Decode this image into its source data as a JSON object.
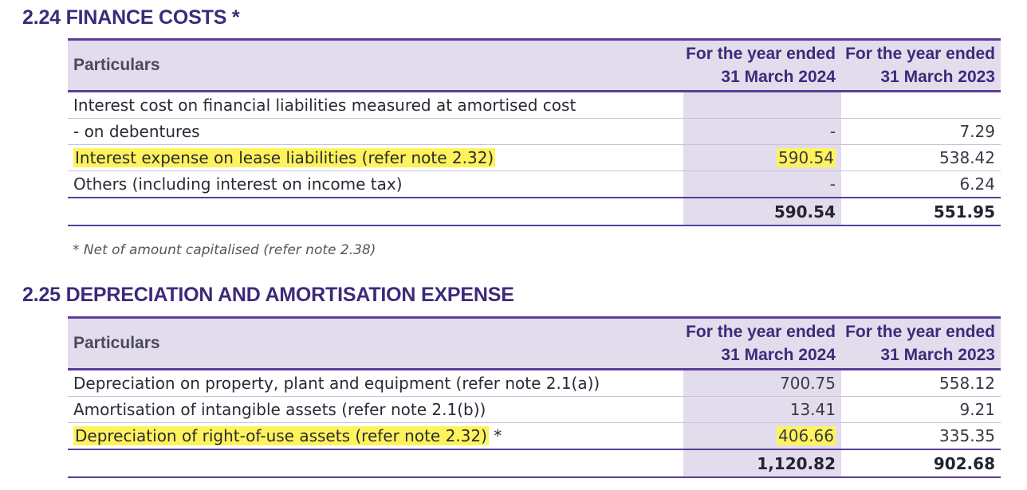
{
  "finance_costs": {
    "heading": "2.24 FINANCE COSTS *",
    "header": {
      "particulars": "Particulars",
      "col_2024_line1": "For the year ended",
      "col_2024_line2": "31 March 2024",
      "col_2023_line1": "For the year ended",
      "col_2023_line2": "31 March 2023"
    },
    "rows": [
      {
        "label": "Interest cost on financial liabilities measured at amortised cost",
        "v2024": "",
        "v2023": ""
      },
      {
        "label": "- on debentures",
        "v2024": "-",
        "v2023": "7.29"
      },
      {
        "label": "Interest expense on lease liabilities (refer note 2.32)",
        "v2024": "590.54",
        "v2023": "538.42"
      },
      {
        "label": "Others (including interest on income tax)",
        "v2024": "-",
        "v2023": "6.24"
      }
    ],
    "total": {
      "v2024": "590.54",
      "v2023": "551.95"
    },
    "footnote": "* Net of amount capitalised (refer note 2.38)"
  },
  "depreciation": {
    "heading": "2.25 DEPRECIATION AND AMORTISATION EXPENSE",
    "header": {
      "particulars": "Particulars",
      "col_2024_line1": "For the year ended",
      "col_2024_line2": "31 March 2024",
      "col_2023_line1": "For the year ended",
      "col_2023_line2": "31 March 2023"
    },
    "rows": [
      {
        "label": "Depreciation on property, plant and equipment (refer note 2.1(a))",
        "v2024": "700.75",
        "v2023": "558.12"
      },
      {
        "label": "Amortisation of intangible assets (refer note 2.1(b))",
        "v2024": "13.41",
        "v2023": "9.21"
      },
      {
        "label": "Depreciation of right-of-use assets (refer note 2.32)",
        "label_suffix": " *",
        "v2024": "406.66",
        "v2023": "335.35"
      }
    ],
    "total": {
      "v2024": "1,120.82",
      "v2023": "902.68"
    }
  },
  "colors": {
    "heading": "#3d2a7a",
    "header_fill": "#e3dcec",
    "rule": "#5b3d99",
    "highlight": "#fff35c"
  }
}
